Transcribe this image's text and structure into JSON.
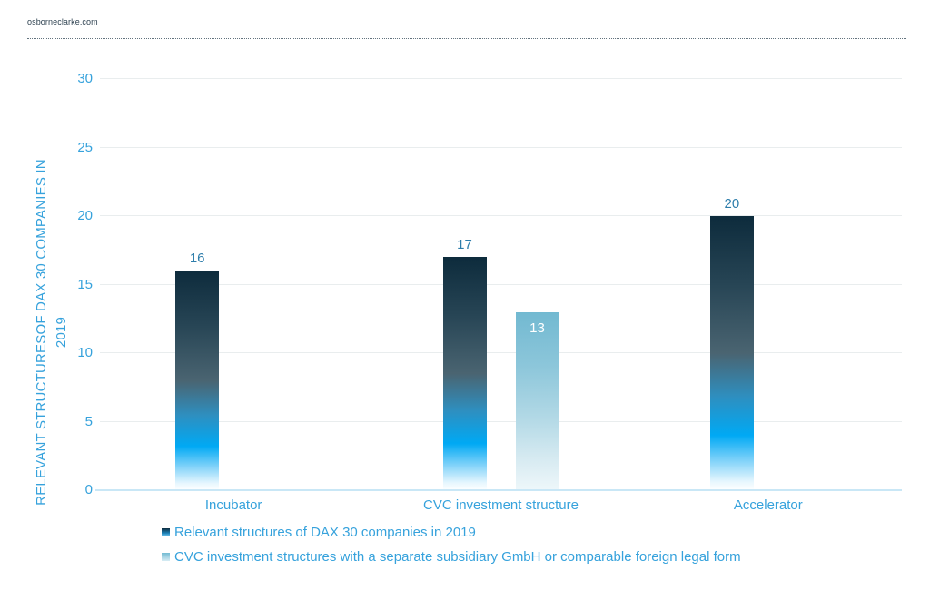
{
  "header": {
    "brand": "osborneclarke.com"
  },
  "y_axis": {
    "line1": "RELEVANT STRUCTURESOF DAX 30 COMPANIES IN",
    "line2": "2019"
  },
  "chart_data": {
    "type": "bar",
    "title": "",
    "xlabel": "",
    "ylabel": "RELEVANT STRUCTURESOF DAX 30 COMPANIES IN 2019",
    "ylim": [
      0,
      30
    ],
    "yticks": [
      0,
      5,
      10,
      15,
      20,
      25,
      30
    ],
    "grid": true,
    "legend_position": "bottom-left",
    "categories": [
      "Incubator",
      "CVC investment structure",
      "Accelerator"
    ],
    "series": [
      {
        "name": "Relevant structures of DAX 30 companies in 2019",
        "values": [
          16,
          17,
          20
        ],
        "style": "dark",
        "label_position": "outside"
      },
      {
        "name": "CVC investment structures with a separate subsidiary GmbH or comparable foreign legal form",
        "values": [
          null,
          13,
          null
        ],
        "style": "light",
        "label_position": "inside"
      }
    ]
  },
  "colors": {
    "accent_text": "#36a2dc",
    "data_label": "#2d7dab",
    "bar_dark_top": "#0d2b3c",
    "bar_bright_blue": "#00a9f4",
    "bar_light_top": "#72b9d1",
    "gridline": "#e9edee",
    "baseline": "#c9e7f6",
    "brand_text": "#2b3f4e",
    "inside_label": "#ffffff"
  }
}
